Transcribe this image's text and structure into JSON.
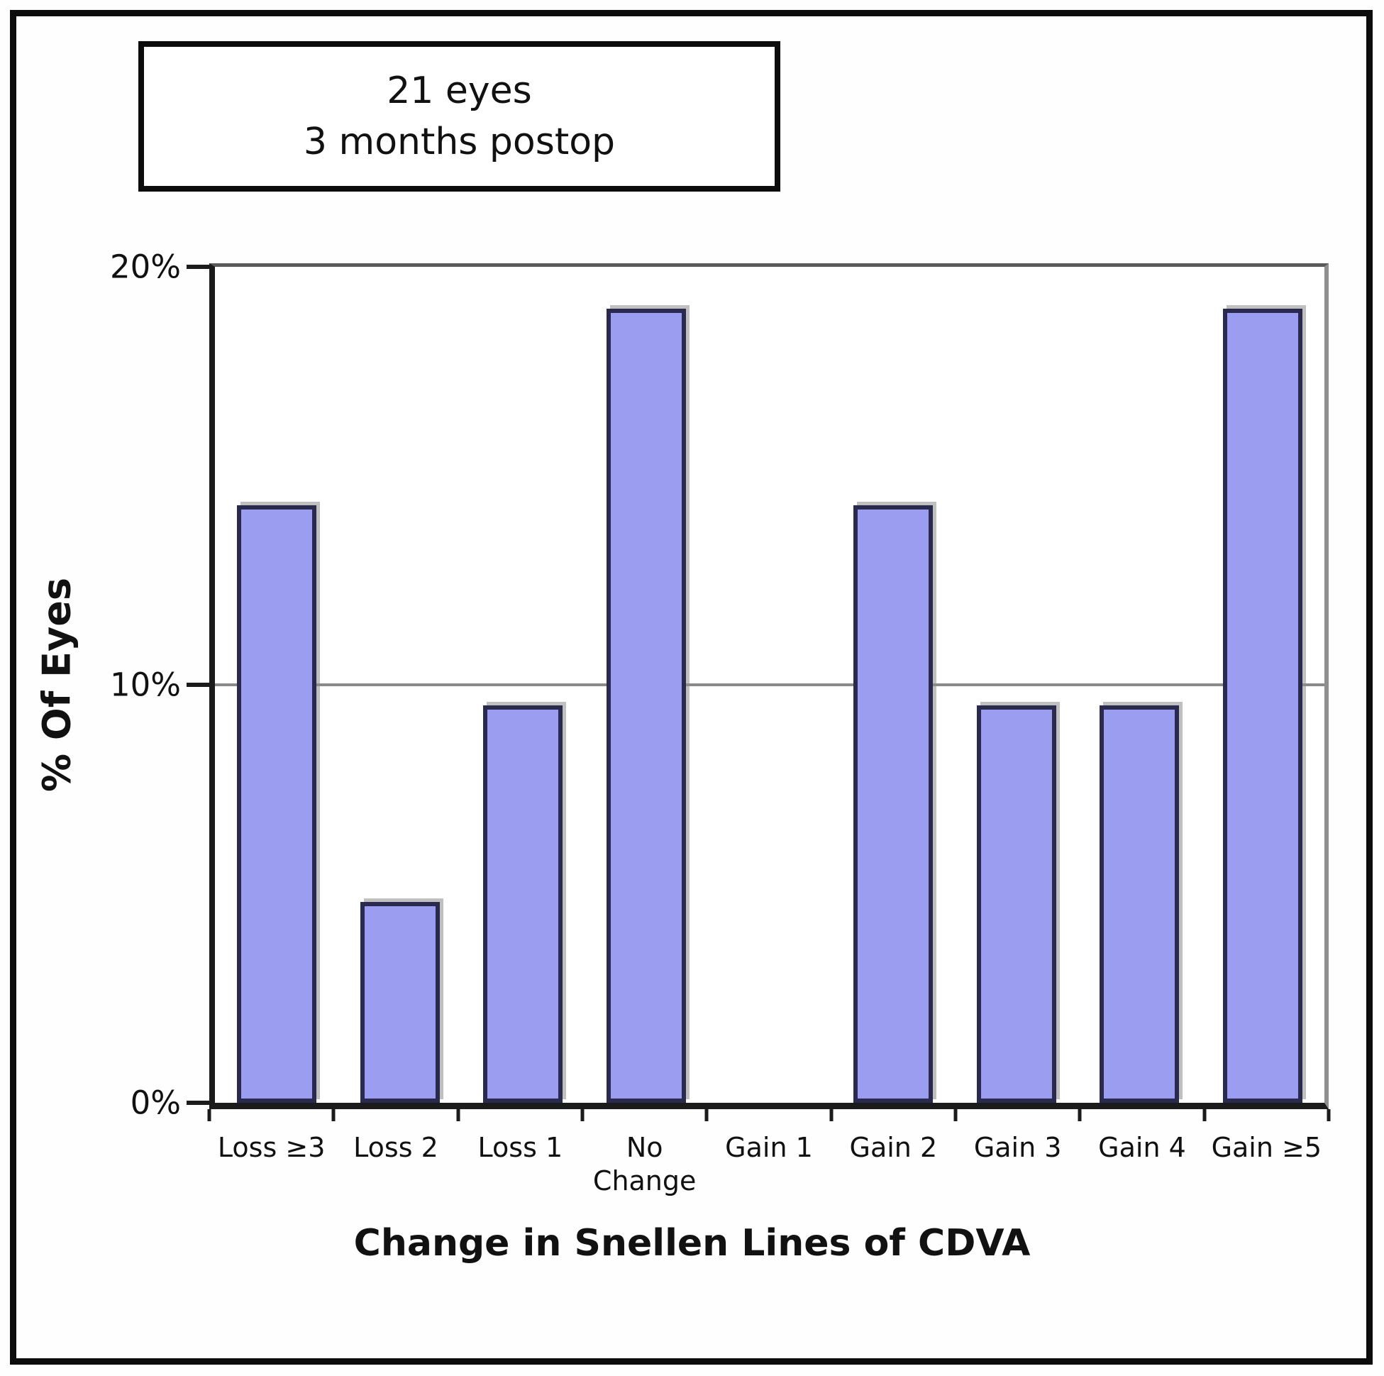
{
  "figure": {
    "background": "#ffffff",
    "frame_color": "#0c0c0c"
  },
  "chart_data": {
    "type": "bar",
    "annotation_box": [
      "21 eyes",
      "3 months postop"
    ],
    "categories": [
      "Loss ≥3",
      "Loss 2",
      "Loss 1",
      "No Change",
      "Gain 1",
      "Gain 2",
      "Gain 3",
      "Gain 4",
      "Gain ≥5"
    ],
    "values": [
      14.3,
      4.8,
      9.5,
      19.0,
      0,
      14.3,
      9.5,
      9.5,
      19.0
    ],
    "xlabel": "Change in Snellen Lines of CDVA",
    "ylabel": "% Of Eyes",
    "ylim": [
      0,
      20
    ],
    "yticks": [
      {
        "value": 0,
        "label": "0%"
      },
      {
        "value": 10,
        "label": "10%"
      },
      {
        "value": 20,
        "label": "20%"
      }
    ],
    "gridlines_y": [
      10
    ],
    "legend": "none",
    "bar_color": "#9a9df0",
    "bar_border_color": "#2a2a4e",
    "gridline_color": "#8a8a8a"
  }
}
